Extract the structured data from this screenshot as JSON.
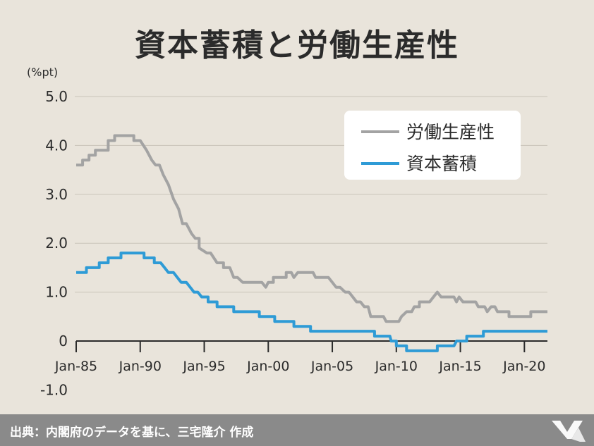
{
  "title": "資本蓄積と労働生産性",
  "footer": {
    "source": "出典：内閣府のデータを基に、三宅隆介 作成"
  },
  "colors": {
    "labor": "#a3a3a3",
    "capital": "#2e9bd6",
    "background": "#e9e4db",
    "footer": "#8a8a8a"
  },
  "chart_data": {
    "type": "line",
    "title": "資本蓄積と労働生産性",
    "ylabel": "(%pt)",
    "xlabel": "",
    "ylim": [
      -1.0,
      5.0
    ],
    "yticks": [
      "5.0",
      "4.0",
      "3.0",
      "2.0",
      "1.0",
      "0",
      "-1.0"
    ],
    "yticks_values": [
      5,
      4,
      3,
      2,
      1,
      0,
      -1
    ],
    "xticks": [
      "Jan-85",
      "Jan-90",
      "Jan-95",
      "Jan-00",
      "Jan-05",
      "Jan-10",
      "Jan-15",
      "Jan-20"
    ],
    "xticks_values": [
      1985,
      1990,
      1995,
      2000,
      2005,
      2010,
      2015,
      2020
    ],
    "xlim": [
      1985,
      2021.8
    ],
    "grid": true,
    "legend": "top-right",
    "series": [
      {
        "name": "労働生産性",
        "color": "#a3a3a3",
        "points": [
          [
            1985,
            3.6
          ],
          [
            1985.5,
            3.6
          ],
          [
            1985.5,
            3.7
          ],
          [
            1986,
            3.7
          ],
          [
            1986,
            3.8
          ],
          [
            1986.5,
            3.8
          ],
          [
            1986.5,
            3.9
          ],
          [
            1987.5,
            3.9
          ],
          [
            1987.5,
            4.1
          ],
          [
            1988,
            4.1
          ],
          [
            1988,
            4.2
          ],
          [
            1989.5,
            4.2
          ],
          [
            1989.5,
            4.1
          ],
          [
            1990,
            4.1
          ],
          [
            1990.5,
            3.9
          ],
          [
            1990.9,
            3.7
          ],
          [
            1991.2,
            3.6
          ],
          [
            1991.5,
            3.6
          ],
          [
            1991.8,
            3.4
          ],
          [
            1992.2,
            3.2
          ],
          [
            1992.6,
            2.9
          ],
          [
            1993,
            2.7
          ],
          [
            1993.3,
            2.4
          ],
          [
            1993.6,
            2.4
          ],
          [
            1994,
            2.2
          ],
          [
            1994.3,
            2.1
          ],
          [
            1994.6,
            2.1
          ],
          [
            1994.6,
            1.9
          ],
          [
            1995.2,
            1.8
          ],
          [
            1995.5,
            1.8
          ],
          [
            1996,
            1.6
          ],
          [
            1996.5,
            1.6
          ],
          [
            1996.5,
            1.5
          ],
          [
            1997,
            1.5
          ],
          [
            1997.3,
            1.3
          ],
          [
            1997.6,
            1.3
          ],
          [
            1998,
            1.2
          ],
          [
            1999.5,
            1.2
          ],
          [
            1999.8,
            1.1
          ],
          [
            2000,
            1.2
          ],
          [
            2000.4,
            1.2
          ],
          [
            2000.4,
            1.3
          ],
          [
            2001.4,
            1.3
          ],
          [
            2001.4,
            1.4
          ],
          [
            2001.8,
            1.4
          ],
          [
            2002,
            1.3
          ],
          [
            2002.3,
            1.4
          ],
          [
            2003.5,
            1.4
          ],
          [
            2003.7,
            1.3
          ],
          [
            2004.7,
            1.3
          ],
          [
            2005,
            1.2
          ],
          [
            2005.3,
            1.1
          ],
          [
            2005.6,
            1.1
          ],
          [
            2006,
            1.0
          ],
          [
            2006.3,
            1.0
          ],
          [
            2006.6,
            0.9
          ],
          [
            2006.9,
            0.8
          ],
          [
            2007.2,
            0.8
          ],
          [
            2007.5,
            0.7
          ],
          [
            2007.8,
            0.7
          ],
          [
            2008,
            0.5
          ],
          [
            2009,
            0.5
          ],
          [
            2009.2,
            0.4
          ],
          [
            2010.2,
            0.4
          ],
          [
            2010.4,
            0.5
          ],
          [
            2010.8,
            0.6
          ],
          [
            2011.2,
            0.6
          ],
          [
            2011.4,
            0.7
          ],
          [
            2011.8,
            0.7
          ],
          [
            2011.8,
            0.8
          ],
          [
            2012.6,
            0.8
          ],
          [
            2012.9,
            0.9
          ],
          [
            2013.2,
            1.0
          ],
          [
            2013.5,
            0.9
          ],
          [
            2014.5,
            0.9
          ],
          [
            2014.7,
            0.8
          ],
          [
            2014.9,
            0.9
          ],
          [
            2015.2,
            0.8
          ],
          [
            2016.2,
            0.8
          ],
          [
            2016.4,
            0.7
          ],
          [
            2016.9,
            0.7
          ],
          [
            2017.1,
            0.6
          ],
          [
            2017.4,
            0.7
          ],
          [
            2017.7,
            0.7
          ],
          [
            2017.9,
            0.6
          ],
          [
            2018.8,
            0.6
          ],
          [
            2018.8,
            0.5
          ],
          [
            2020.5,
            0.5
          ],
          [
            2020.5,
            0.6
          ],
          [
            2021.8,
            0.6
          ]
        ]
      },
      {
        "name": "資本蓄積",
        "color": "#2e9bd6",
        "points": [
          [
            1985,
            1.4
          ],
          [
            1985.8,
            1.4
          ],
          [
            1985.8,
            1.5
          ],
          [
            1986.8,
            1.5
          ],
          [
            1986.8,
            1.6
          ],
          [
            1987.5,
            1.6
          ],
          [
            1987.5,
            1.7
          ],
          [
            1988.5,
            1.7
          ],
          [
            1988.5,
            1.8
          ],
          [
            1990.3,
            1.8
          ],
          [
            1990.3,
            1.7
          ],
          [
            1991.1,
            1.7
          ],
          [
            1991.1,
            1.6
          ],
          [
            1991.6,
            1.6
          ],
          [
            1991.9,
            1.5
          ],
          [
            1992.2,
            1.4
          ],
          [
            1992.6,
            1.4
          ],
          [
            1992.9,
            1.3
          ],
          [
            1993.2,
            1.2
          ],
          [
            1993.6,
            1.2
          ],
          [
            1993.9,
            1.1
          ],
          [
            1994.2,
            1.0
          ],
          [
            1994.5,
            1.0
          ],
          [
            1994.8,
            0.9
          ],
          [
            1995.3,
            0.9
          ],
          [
            1995.3,
            0.8
          ],
          [
            1996,
            0.8
          ],
          [
            1996,
            0.7
          ],
          [
            1997.3,
            0.7
          ],
          [
            1997.3,
            0.6
          ],
          [
            1999.3,
            0.6
          ],
          [
            1999.3,
            0.5
          ],
          [
            2000.5,
            0.5
          ],
          [
            2000.5,
            0.4
          ],
          [
            2002,
            0.4
          ],
          [
            2002,
            0.3
          ],
          [
            2003.3,
            0.3
          ],
          [
            2003.3,
            0.2
          ],
          [
            2008.3,
            0.2
          ],
          [
            2008.3,
            0.1
          ],
          [
            2009.5,
            0.1
          ],
          [
            2009.6,
            0.0
          ],
          [
            2010,
            0.0
          ],
          [
            2010,
            -0.1
          ],
          [
            2010.8,
            -0.1
          ],
          [
            2010.8,
            -0.2
          ],
          [
            2013.2,
            -0.2
          ],
          [
            2013.2,
            -0.1
          ],
          [
            2014.5,
            -0.1
          ],
          [
            2014.7,
            0.0
          ],
          [
            2015.5,
            0.0
          ],
          [
            2015.5,
            0.1
          ],
          [
            2016.8,
            0.1
          ],
          [
            2016.8,
            0.2
          ],
          [
            2021.8,
            0.2
          ]
        ]
      }
    ]
  }
}
